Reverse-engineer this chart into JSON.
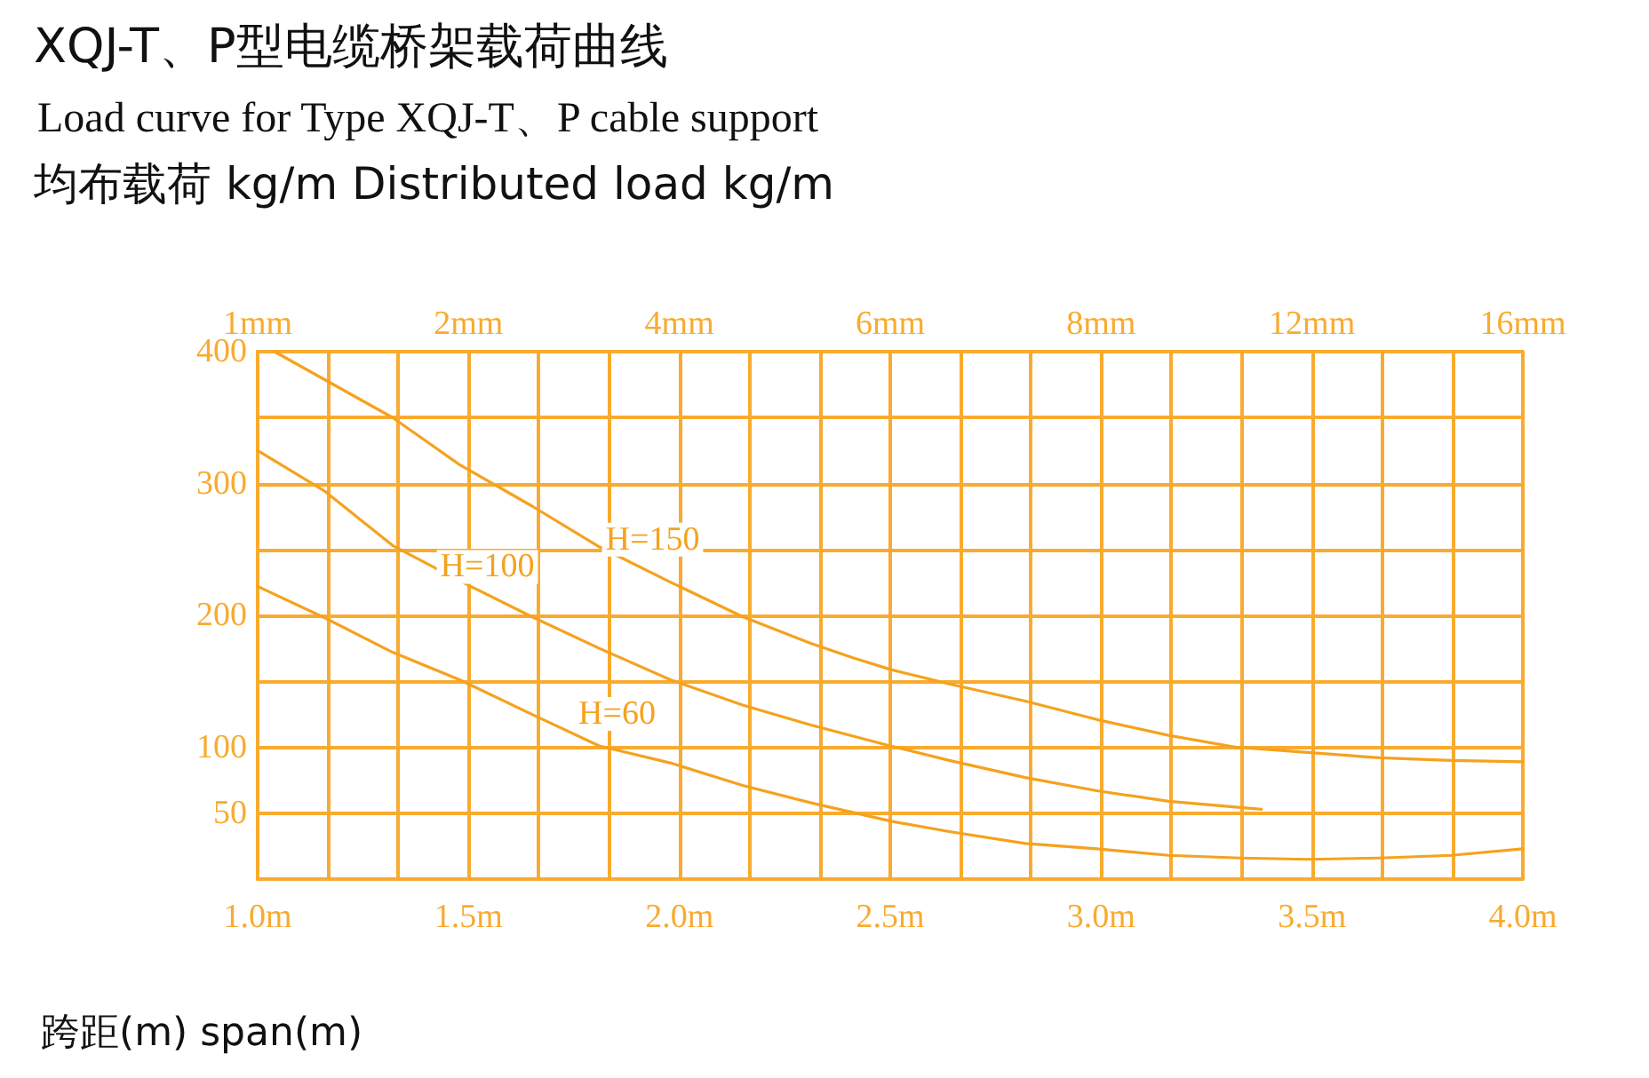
{
  "chart_data": {
    "type": "line",
    "title": "XQJ-T、P型电缆桥架载荷曲线",
    "subtitle": "Load curve for Type XQJ-T、P cable support",
    "ylabel": "均布载荷 kg/m Distributed load kg/m",
    "xlabel": "跨距(m) span(m)",
    "xlim": [
      1,
      4
    ],
    "xticks": [
      {
        "value": 1,
        "label": "1.0m"
      },
      {
        "value": 1.5,
        "label": "1.5m"
      },
      {
        "value": 2,
        "label": "2.0m"
      },
      {
        "value": 2.5,
        "label": "2.5m"
      },
      {
        "value": 3,
        "label": "3.0m"
      },
      {
        "value": 3.5,
        "label": "3.5m"
      },
      {
        "value": 4,
        "label": "4.0m"
      }
    ],
    "annotations": [
      "1mm",
      "2mm",
      "4mm",
      "6mm",
      "8mm",
      "12mm",
      "16mm"
    ],
    "ylim": [
      0,
      400
    ],
    "yticks": [
      {
        "value": 0,
        "label": null
      },
      50,
      100,
      {
        "value": 150,
        "label": null
      },
      200,
      {
        "value": 250,
        "label": null
      },
      300,
      {
        "value": 350,
        "label": null
      },
      400
    ],
    "grid": true,
    "legend": false,
    "marker": "none",
    "line_style": "solid",
    "series": [
      {
        "name": "H=150",
        "color": "#f5a21e",
        "x": [
          1.04,
          1.32,
          1.48,
          1.65,
          1.81,
          1.98,
          2.15,
          2.31,
          2.41,
          2.5,
          2.64,
          2.82,
          2.99,
          3.16,
          3.32,
          3.49,
          3.66,
          3.83,
          4.0
        ],
        "values": [
          400,
          350,
          314,
          283,
          252,
          225,
          199,
          179,
          168,
          159,
          148,
          135,
          121,
          109,
          100,
          96,
          92,
          90,
          89
        ]
      },
      {
        "name": "H=100",
        "color": "#f5a21e",
        "x": [
          1.0,
          1.16,
          1.32,
          1.48,
          1.65,
          1.81,
          1.98,
          2.15,
          2.31,
          2.5,
          2.64,
          2.82,
          2.99,
          3.16,
          3.38
        ],
        "values": [
          325,
          294,
          253,
          226,
          199,
          175,
          151,
          132,
          117,
          101,
          90,
          77,
          67,
          59,
          53
        ]
      },
      {
        "name": "H=60",
        "color": "#f5a21e",
        "x": [
          1.0,
          1.16,
          1.32,
          1.48,
          1.65,
          1.81,
          1.98,
          2.15,
          2.31,
          2.5,
          2.64,
          2.82,
          2.99,
          3.16,
          3.33,
          3.49,
          3.66,
          3.83,
          4.0
        ],
        "values": [
          222,
          198,
          172,
          151,
          125,
          101,
          88,
          71,
          58,
          44,
          36,
          27,
          23,
          18,
          16,
          15,
          16,
          18,
          23
        ]
      }
    ]
  }
}
